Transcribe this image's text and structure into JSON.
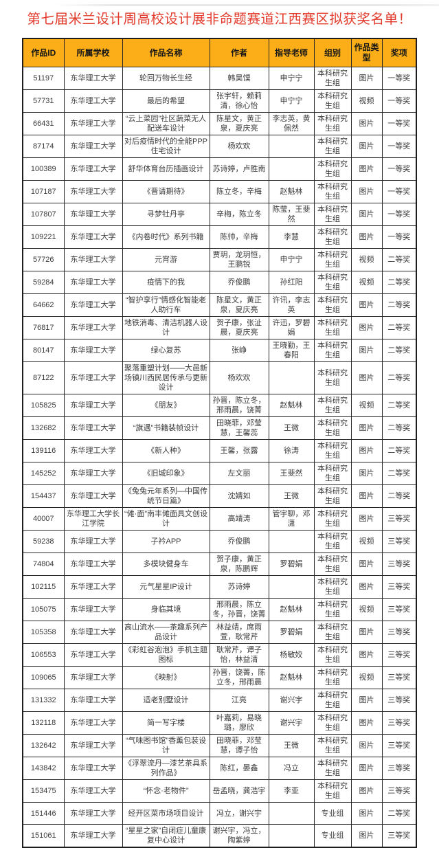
{
  "title": "第七届米兰设计周高校设计展非命题赛道江西赛区拟获奖名单！",
  "colors": {
    "title_red": "#e23a2b",
    "header_bg": "#fbae17",
    "border": "#262626"
  },
  "table": {
    "columns": [
      "作品ID",
      "所属学校",
      "作品名称",
      "作者",
      "指导老师",
      "组别",
      "作品类型",
      "奖项"
    ],
    "column_keys": [
      "work-id",
      "school",
      "work-name",
      "authors",
      "advisors",
      "group",
      "work-type",
      "award"
    ],
    "rows": [
      [
        "51197",
        "东华理工大学",
        "轮回万物长生经",
        "韩昊馍",
        "申宁宁",
        "本科研究生组",
        "图片",
        "一等奖"
      ],
      [
        "57731",
        "东华理工大学",
        "最后的希望",
        "张宇轩，赖莉清，徐心怡",
        "申宁宁",
        "本科研究生组",
        "视频",
        "一等奖"
      ],
      [
        "66431",
        "东华理工大学",
        "“云上菜园”社区蔬菜无人配送车设计",
        "陈星文，黄正泉，夏庆亮",
        "李志英，黄佩然",
        "本科研究生组",
        "图片",
        "一等奖"
      ],
      [
        "87174",
        "东华理工大学",
        "对后疫情时代的全能PPP住宅设计",
        "杨欢欢",
        "",
        "本科研究生组",
        "图片",
        "一等奖"
      ],
      [
        "100389",
        "东华理工大学",
        "舒华体育台历插画设计",
        "苏诗婷，卢胜南",
        "",
        "本科研究生组",
        "图片",
        "一等奖"
      ],
      [
        "107187",
        "东华理工大学",
        "《晋请期待》",
        "陈立冬，辛梅",
        "赵魁林",
        "本科研究生组",
        "图片",
        "一等奖"
      ],
      [
        "107807",
        "东华理工大学",
        "寻梦牡丹亭",
        "辛梅，陈立冬",
        "陈莹，王斐然",
        "本科研究生组",
        "图片",
        "一等奖"
      ],
      [
        "109221",
        "东华理工大学",
        "《内卷时代》系列书籍",
        "陈帅，辛梅",
        "李慧",
        "本科研究生组",
        "图片",
        "一等奖"
      ],
      [
        "57726",
        "东华理工大学",
        "元宵游",
        "贾玥，龙玥恒，王鹏锐",
        "申宁宁",
        "本科研究生组",
        "视频",
        "二等奖"
      ],
      [
        "59284",
        "东华理工大学",
        "疫情下的我",
        "乔俊鹏",
        "孙红阳",
        "本科研究生组",
        "视频",
        "二等奖"
      ],
      [
        "64662",
        "东华理工大学",
        "“智护享行”情感化智能老人助行车",
        "陈星文，黄正泉，夏庆亮",
        "许讯，李志英",
        "本科研究生组",
        "图片",
        "二等奖"
      ],
      [
        "76817",
        "东华理工大学",
        "地铁消毒、清洁机器人设计",
        "贺子康，张沚晨，夏庆亮",
        "许迅，罗碧娟",
        "本科研究生组",
        "图片",
        "二等奖"
      ],
      [
        "80147",
        "东华理工大学",
        "绿心复苏",
        "张峥",
        "王晓勤，王春阳",
        "本科研究生组",
        "图片",
        "二等奖"
      ],
      [
        "87122",
        "东华理工大学",
        "聚落重塑计划——大邑新场镇川西民居传承与更新设计",
        "杨欢欢",
        "",
        "本科研究生组",
        "图片",
        "二等奖"
      ],
      [
        "105825",
        "东华理工大学",
        "《朋友》",
        "孙晋，陈立冬，邢雨晨，饶菁",
        "赵魁林",
        "本科研究生组",
        "视频",
        "二等奖"
      ],
      [
        "132682",
        "东华理工大学",
        "“旗遇”书籍装帧设计",
        "田晓菲，邓莹慧，王馨蕊",
        "王微",
        "本科研究生组",
        "图片",
        "二等奖"
      ],
      [
        "139116",
        "东华理工大学",
        "《新人种》",
        "王馨，张露",
        "徐涛",
        "本科研究生组",
        "图片",
        "二等奖"
      ],
      [
        "145252",
        "东华理工大学",
        "《旧城印象》",
        "左文丽",
        "王斐然",
        "本科研究生组",
        "图片",
        "二等奖"
      ],
      [
        "154437",
        "东华理工大学",
        "《兔兔元年系列—中国传统节日篇》",
        "沈婧如",
        "王微",
        "本科研究生组",
        "图片",
        "二等奖"
      ],
      [
        "40007",
        "东华理工大学长江学院",
        "“傩·面”南丰傩面具文创设计",
        "高靖涛",
        "管宇聊，邓潇",
        "本科研究生组",
        "图片",
        "三等奖"
      ],
      [
        "59238",
        "东华理工大学",
        "子衿APP",
        "乔俊鹏",
        "",
        "本科研究生组",
        "视频",
        "三等奖"
      ],
      [
        "74804",
        "东华理工大学",
        "多模块健身车",
        "贺子康，黄正泉，陈鹏辉",
        "罗碧娟",
        "本科研究生组",
        "图片",
        "三等奖"
      ],
      [
        "102115",
        "东华理工大学",
        "元气星星IP设计",
        "苏诗婷",
        "",
        "本科研究生组",
        "图片",
        "三等奖"
      ],
      [
        "105075",
        "东华理工大学",
        "身临其境",
        "邢雨晨，陈立冬，孙晋，饶菁",
        "赵魁林",
        "本科研究生组",
        "视频",
        "三等奖"
      ],
      [
        "105358",
        "东华理工大学",
        "高山流水——茶趣系列产品设计",
        "林益靖，席雨萱，耿常芹",
        "罗碧娟",
        "本科研究生组",
        "图片",
        "三等奖"
      ],
      [
        "106553",
        "东华理工大学",
        "《彩虹谷泡泡》手机主题图标",
        "耿常芹，谭子怡，林益清",
        "杨敏姣",
        "本科研究生组",
        "图片",
        "三等奖"
      ],
      [
        "109065",
        "东华理工大学",
        "《映射》",
        "孙晋，饶菁，陈立冬，邢雨晨",
        "赵魁林",
        "本科研究生组",
        "视频",
        "三等奖"
      ],
      [
        "131332",
        "东华理工大学",
        "适老别墅设计",
        "江亮",
        "谢兴宇",
        "本科研究生组",
        "图片",
        "三等奖"
      ],
      [
        "132118",
        "东华理工大学",
        "简一写字楼",
        "叶嘉莉，易晓璐，廖欣",
        "谢兴宇",
        "本科研究生组",
        "图片",
        "三等奖"
      ],
      [
        "132642",
        "东华理工大学",
        "“气味图书馆”香薰包装设计",
        "田晓菲，邓莹慧，谭子怡",
        "王微",
        "本科研究生组",
        "图片",
        "三等奖"
      ],
      [
        "143842",
        "东华理工大学",
        "《浮翠流丹—漆艺茶具系列作品》",
        "陈红，晏鑫",
        "冯立",
        "本科研究生组",
        "图片",
        "三等奖"
      ],
      [
        "153475",
        "东华理工大学",
        "“怀念·老物件”",
        "岳孟晓，龚浩宇",
        "李亚",
        "本科研究生组",
        "图片",
        "三等奖"
      ],
      [
        "151446",
        "东华理工大学",
        "经开区菜市场项目设计",
        "冯立，谢兴宇",
        "",
        "专业组",
        "图片",
        "二等奖"
      ],
      [
        "151061",
        "东华理工大学",
        "“星星之家”自闭症儿童康复中心设计",
        "谢兴宇，冯立，陶紫婷",
        "",
        "专业组",
        "图片",
        "三等奖"
      ]
    ]
  }
}
